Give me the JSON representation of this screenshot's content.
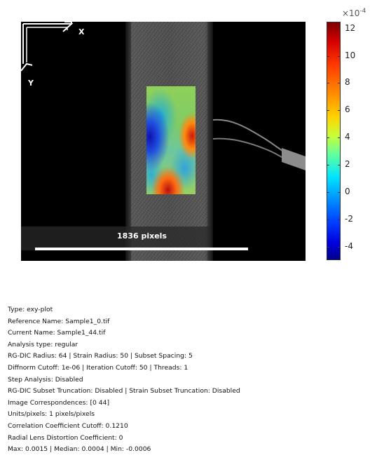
{
  "image": {
    "scale_label": "1836 pixels",
    "axis_labels": {
      "x": "X",
      "y": "Y"
    }
  },
  "colorbar": {
    "exponent_base": "×10",
    "exponent_power": "-4",
    "ticks": [
      "12",
      "10",
      "8",
      "6",
      "4",
      "2",
      "0",
      "-2",
      "-4"
    ],
    "tick_values": [
      12,
      10,
      8,
      6,
      4,
      2,
      0,
      -2,
      -4
    ],
    "range": [
      -5,
      12.5
    ]
  },
  "info": {
    "lines": [
      "Type: exy-plot",
      "Reference Name: Sample1_0.tif",
      "Current Name: Sample1_44.tif",
      "Analysis type: regular",
      "RG-DIC Radius: 64 | Strain Radius: 50 | Subset Spacing: 5",
      "Diffnorm Cutoff: 1e-06 | Iteration Cutoff: 50 | Threads: 1",
      "Step Analysis: Disabled",
      "RG-DIC Subset Truncation: Disabled | Strain Subset Truncation: Disabled",
      "Image Correspondences: [0 44]",
      "Units/pixels: 1 pixels/pixels",
      "Correlation Coefficient Cutoff: 0.1210",
      "Radial Lens Distortion Coefficient: 0",
      "Max: 0.0015 | Median: 0.0004 | Min: -0.0006"
    ]
  }
}
